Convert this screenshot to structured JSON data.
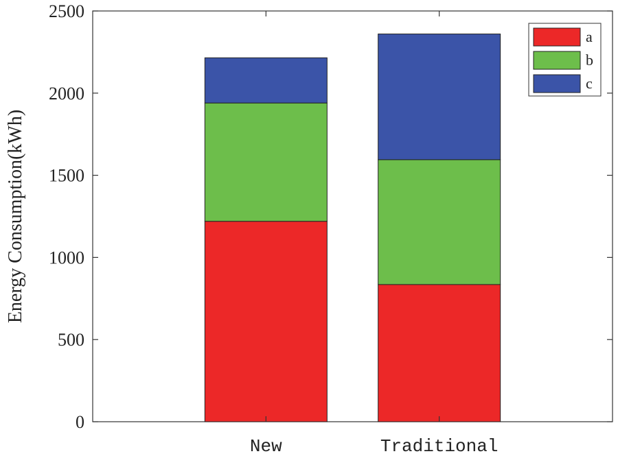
{
  "chart_data": {
    "type": "bar",
    "stacked": true,
    "categories": [
      "New",
      "Traditional"
    ],
    "series": [
      {
        "name": "a",
        "values": [
          1220,
          835
        ],
        "color": "#ec2828"
      },
      {
        "name": "b",
        "values": [
          720,
          760
        ],
        "color": "#6dbe4b"
      },
      {
        "name": "c",
        "values": [
          275,
          765
        ],
        "color": "#3b54a8"
      }
    ],
    "xlabel": "",
    "ylabel": "Energy Consumption(kWh)",
    "ylim": [
      0,
      2500
    ],
    "yticks": [
      0,
      500,
      1000,
      1500,
      2000,
      2500
    ],
    "xlim": [
      0,
      3
    ],
    "grid": false,
    "legend_position": "top-right"
  }
}
